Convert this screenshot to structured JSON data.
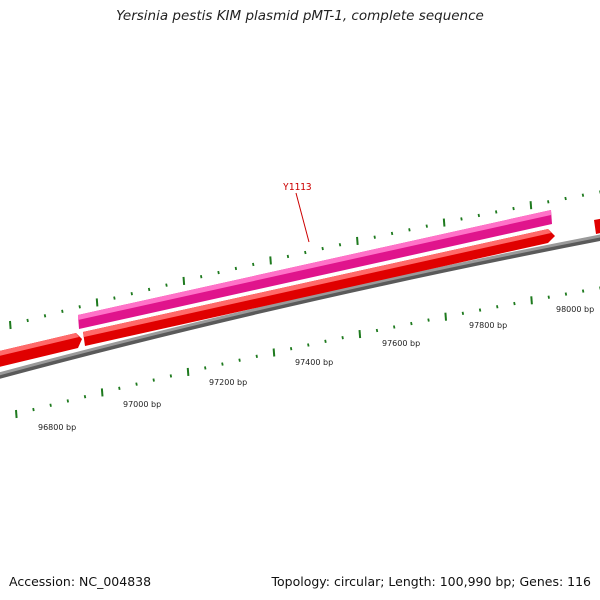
{
  "title": "Yersinia pestis KIM plasmid pMT-1, complete sequence",
  "footer": {
    "accession": "Accession: NC_004838",
    "summary": "Topology: circular; Length: 100,990 bp; Genes: 116"
  },
  "gene_label": "Y1113",
  "colors": {
    "backbone": "#888888",
    "forward_gene": "#ff1010",
    "reverse_gene": "#ff2fb4",
    "ticks": "#1e7a1e",
    "label": "#cc0000"
  },
  "ticks": [
    {
      "label": "96800 bp"
    },
    {
      "label": "97000 bp"
    },
    {
      "label": "97200 bp"
    },
    {
      "label": "97400 bp"
    },
    {
      "label": "97600 bp"
    },
    {
      "label": "97800 bp"
    },
    {
      "label": "98000 bp"
    }
  ]
}
